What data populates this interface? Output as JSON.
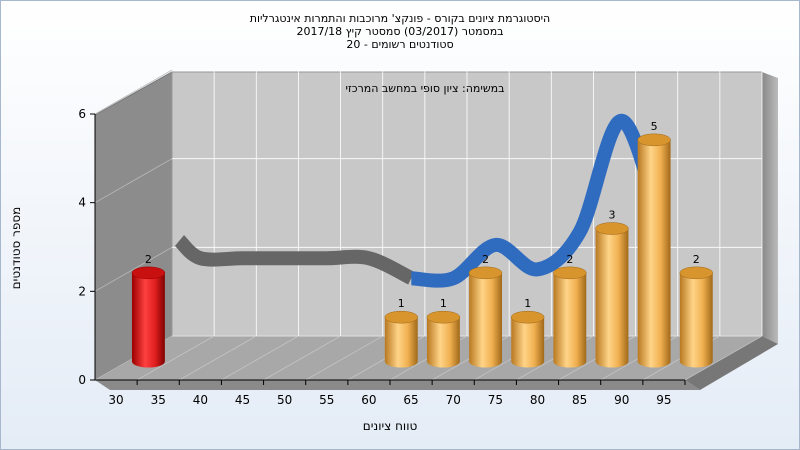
{
  "chart_data": {
    "type": "bar",
    "title": [
      "היסטוגרמת ציונים בקורס - פונקצ' מרוכבות והתמרות אינטגרליות",
      "במסמטר  (03/2017)  סמסטר קיץ  2017/18",
      "סטודנטים רשומים - 20"
    ],
    "annotation": "במשימה: ציון סופי במחשב המרכזי",
    "xlabel": "טווח ציונים",
    "ylabel": "מספר סטודנטים",
    "x_ticks": [
      "30",
      "35",
      "40",
      "45",
      "50",
      "55",
      "60",
      "65",
      "70",
      "75",
      "80",
      "85",
      "90",
      "95"
    ],
    "y_ticks": [
      "0",
      "2",
      "4",
      "6"
    ],
    "ylim": [
      0,
      6
    ],
    "bars": [
      {
        "x": 30,
        "value": 2,
        "label": "2",
        "color": "#e02020"
      },
      {
        "x": 60,
        "value": 1,
        "label": "1",
        "color": "#f0b050"
      },
      {
        "x": 65,
        "value": 1,
        "label": "1",
        "color": "#f0b050"
      },
      {
        "x": 70,
        "value": 2,
        "label": "2",
        "color": "#f0b050"
      },
      {
        "x": 75,
        "value": 1,
        "label": "1",
        "color": "#f0b050"
      },
      {
        "x": 80,
        "value": 2,
        "label": "2",
        "color": "#f0b050"
      },
      {
        "x": 85,
        "value": 3,
        "label": "3",
        "color": "#f0b050"
      },
      {
        "x": 90,
        "value": 5,
        "label": "5",
        "color": "#f0b050"
      },
      {
        "x": 95,
        "value": 2,
        "label": "2",
        "color": "#f0b050"
      }
    ],
    "ribbon": {
      "points": [
        [
          32.5,
          2.6
        ],
        [
          35,
          2.2
        ],
        [
          40,
          2.2
        ],
        [
          45,
          2.2
        ],
        [
          50,
          2.2
        ],
        [
          55,
          2.2
        ],
        [
          60,
          1.75
        ],
        [
          65,
          1.75
        ],
        [
          70,
          2.5
        ],
        [
          75,
          1.95
        ],
        [
          80,
          2.8
        ],
        [
          85,
          5.3
        ],
        [
          90,
          2.6
        ]
      ],
      "color_flat": "#666666",
      "color_active": "#2f6cc0"
    },
    "grid": true,
    "wall_color": "#c8c8c8",
    "floor_color": "#a8a8a8"
  }
}
